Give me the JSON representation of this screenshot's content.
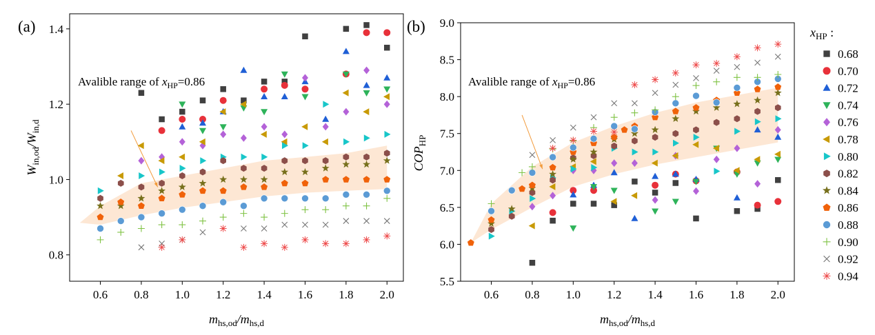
{
  "panels": [
    {
      "letter": "(a)",
      "ylabel": {
        "main": "W",
        "sub1": "in,od",
        "mid": "/W",
        "sub2": "in,d"
      },
      "xlabel": {
        "main": "m",
        "sub1": "hs,od",
        "mid": "/m",
        "sub2": "hs,d"
      },
      "annotation": {
        "pre": "Avalible range of ",
        "var": "x",
        "sub": "HP",
        "post": "=0.86"
      },
      "band_label": "available-range-xHP-0.86"
    },
    {
      "letter": "(b)",
      "ylabel": {
        "main": "COP",
        "sub1": "HP",
        "mid": "",
        "sub2": ""
      },
      "xlabel": {
        "main": "m",
        "sub1": "hs,od",
        "mid": "/m",
        "sub2": "hs,d"
      },
      "annotation": {
        "pre": "Avalible range of ",
        "var": "x",
        "sub": "HP",
        "post": "=0.86"
      },
      "band_label": "available-range-xHP-0.86"
    }
  ],
  "legend": {
    "title_var": "x",
    "title_sub": "HP",
    "title_post": " :",
    "entries": [
      {
        "label": "0.68",
        "color": "#404040",
        "marker": "square"
      },
      {
        "label": "0.70",
        "color": "#e8313a",
        "marker": "circle"
      },
      {
        "label": "0.72",
        "color": "#1f5fd6",
        "marker": "triangle-up"
      },
      {
        "label": "0.74",
        "color": "#2eb35a",
        "marker": "triangle-down"
      },
      {
        "label": "0.76",
        "color": "#b462d8",
        "marker": "diamond"
      },
      {
        "label": "0.78",
        "color": "#c89a06",
        "marker": "triangle-left"
      },
      {
        "label": "0.80",
        "color": "#18c6c9",
        "marker": "triangle-right"
      },
      {
        "label": "0.82",
        "color": "#8c4f4a",
        "marker": "hexagon"
      },
      {
        "label": "0.84",
        "color": "#77701c",
        "marker": "star"
      },
      {
        "label": "0.86",
        "color": "#f0620a",
        "marker": "pentagon"
      },
      {
        "label": "0.88",
        "color": "#5b9bd5",
        "marker": "sphere"
      },
      {
        "label": "0.90",
        "color": "#7fc243",
        "marker": "plus"
      },
      {
        "label": "0.92",
        "color": "#777777",
        "marker": "cross"
      },
      {
        "label": "0.94",
        "color": "#ee4a4a",
        "marker": "asterisk"
      }
    ]
  },
  "chart_data": [
    {
      "type": "scatter",
      "title": "",
      "xlabel": "m_hs,od/m_hs,d",
      "ylabel": "W_in,od/W_in,d",
      "xlim": [
        0.45,
        2.08
      ],
      "ylim": [
        0.73,
        1.44
      ],
      "xticks": [
        0.6,
        0.8,
        1.0,
        1.2,
        1.4,
        1.6,
        1.8,
        2.0
      ],
      "xtick_labels": [
        "0.6",
        "0.8",
        "1.0",
        "1.2",
        "1.4",
        "1.6",
        "1.8",
        "2.0"
      ],
      "yticks": [
        0.8,
        1.0,
        1.2,
        1.4
      ],
      "ytick_labels": [
        "0.8",
        "1.0",
        "1.2",
        "1.4"
      ],
      "x": [
        0.6,
        0.7,
        0.8,
        0.9,
        1.0,
        1.1,
        1.2,
        1.3,
        1.4,
        1.5,
        1.6,
        1.7,
        1.8,
        1.9,
        2.0
      ],
      "series": [
        {
          "name": "0.68",
          "values": [
            null,
            null,
            1.23,
            1.16,
            1.18,
            1.21,
            1.24,
            1.21,
            1.26,
            1.26,
            1.38,
            null,
            1.4,
            1.41,
            1.35
          ]
        },
        {
          "name": "0.70",
          "values": [
            null,
            null,
            null,
            1.13,
            1.16,
            1.16,
            1.21,
            null,
            1.24,
            1.25,
            1.24,
            null,
            1.28,
            1.39,
            1.39
          ]
        },
        {
          "name": "0.72",
          "values": [
            null,
            null,
            null,
            null,
            1.14,
            1.15,
            1.18,
            1.29,
            1.22,
            1.22,
            1.26,
            1.16,
            1.34,
            1.25,
            1.27
          ]
        },
        {
          "name": "0.74",
          "values": [
            null,
            null,
            null,
            null,
            1.2,
            1.13,
            1.14,
            1.19,
            1.18,
            1.28,
            1.22,
            null,
            1.28,
            1.23,
            1.24
          ]
        },
        {
          "name": "0.76",
          "values": [
            null,
            null,
            1.05,
            1.06,
            1.1,
            1.09,
            1.12,
            1.11,
            1.14,
            1.12,
            1.27,
            1.14,
            1.18,
            1.29,
            1.2
          ]
        },
        {
          "name": "0.78",
          "values": [
            null,
            1.01,
            1.09,
            1.05,
            1.06,
            1.1,
            1.18,
            1.2,
            1.12,
            1.1,
            1.14,
            1.1,
            1.23,
            1.18,
            1.22
          ]
        },
        {
          "name": "0.80",
          "values": [
            0.97,
            null,
            1.01,
            1.02,
            1.03,
            1.05,
            1.06,
            1.06,
            1.06,
            1.09,
            1.09,
            1.2,
            1.1,
            1.11,
            1.12
          ]
        },
        {
          "name": "0.82",
          "values": [
            0.95,
            0.99,
            0.98,
            0.99,
            1.01,
            1.02,
            1.05,
            1.03,
            1.03,
            1.05,
            1.05,
            1.05,
            1.06,
            1.06,
            1.07
          ]
        },
        {
          "name": "0.84",
          "values": [
            0.93,
            0.93,
            0.95,
            0.97,
            0.98,
            0.99,
            1.0,
            1.0,
            1.0,
            1.02,
            1.02,
            1.03,
            1.04,
            1.04,
            1.05
          ]
        },
        {
          "name": "0.86",
          "values": [
            0.9,
            0.94,
            0.93,
            0.95,
            0.96,
            0.97,
            0.97,
            0.98,
            0.98,
            0.99,
            0.99,
            1.0,
            1.0,
            1.0,
            1.0
          ]
        },
        {
          "name": "0.88",
          "values": [
            0.87,
            0.89,
            0.9,
            0.91,
            0.92,
            0.93,
            0.94,
            0.93,
            0.95,
            0.95,
            0.95,
            0.95,
            0.96,
            0.96,
            0.97
          ]
        },
        {
          "name": "0.90",
          "values": [
            0.84,
            0.86,
            0.87,
            0.88,
            0.88,
            0.89,
            0.9,
            0.91,
            0.9,
            0.91,
            0.92,
            0.92,
            0.93,
            0.93,
            0.95
          ]
        },
        {
          "name": "0.92",
          "values": [
            null,
            null,
            0.82,
            0.83,
            0.84,
            0.86,
            null,
            0.87,
            0.87,
            0.88,
            0.88,
            0.88,
            0.89,
            0.89,
            0.89
          ]
        },
        {
          "name": "0.94",
          "values": [
            null,
            null,
            null,
            0.82,
            0.84,
            null,
            0.87,
            0.82,
            0.83,
            0.82,
            0.84,
            0.83,
            0.83,
            0.84,
            0.85
          ]
        }
      ],
      "band_xHP_0.86": {
        "x": [
          0.5,
          0.6,
          0.8,
          1.0,
          1.2,
          1.4,
          1.6,
          1.8,
          2.0
        ],
        "lower": [
          0.885,
          0.88,
          0.905,
          0.925,
          0.94,
          0.955,
          0.965,
          0.97,
          0.975
        ],
        "upper": [
          0.885,
          0.93,
          0.99,
          1.01,
          1.03,
          1.05,
          1.06,
          1.07,
          1.09
        ]
      },
      "annotation_arrow": {
        "from": [
          0.75,
          1.13
        ],
        "to": [
          0.88,
          0.98
        ]
      },
      "grid": false
    },
    {
      "type": "scatter",
      "title": "",
      "xlabel": "m_hs,od/m_hs,d",
      "ylabel": "COP_HP",
      "xlim": [
        0.45,
        2.08
      ],
      "ylim": [
        5.5,
        9.0
      ],
      "xticks": [
        0.6,
        0.8,
        1.0,
        1.2,
        1.4,
        1.6,
        1.8,
        2.0
      ],
      "xtick_labels": [
        "0.6",
        "0.8",
        "1.0",
        "1.2",
        "1.4",
        "1.6",
        "1.8",
        "2.0"
      ],
      "yticks": [
        5.5,
        6.0,
        6.5,
        7.0,
        7.5,
        8.0,
        8.5,
        9.0
      ],
      "ytick_labels": [
        "5.5",
        "6.0",
        "6.5",
        "7.0",
        "7.5",
        "8.0",
        "8.5",
        "9.0"
      ],
      "x": [
        0.5,
        0.6,
        0.7,
        0.75,
        0.8,
        0.9,
        1.0,
        1.1,
        1.2,
        1.25,
        1.3,
        1.4,
        1.5,
        1.6,
        1.7,
        1.8,
        1.9,
        2.0
      ],
      "series": [
        {
          "name": "0.68",
          "values": [
            null,
            null,
            null,
            null,
            5.75,
            6.32,
            6.55,
            6.55,
            6.53,
            null,
            6.85,
            6.7,
            6.83,
            6.35,
            null,
            6.45,
            6.48,
            6.87
          ]
        },
        {
          "name": "0.70",
          "values": [
            null,
            null,
            null,
            null,
            null,
            6.43,
            6.73,
            6.73,
            null,
            null,
            null,
            6.8,
            6.95,
            6.86,
            null,
            6.98,
            6.53,
            6.58
          ]
        },
        {
          "name": "0.72",
          "values": [
            null,
            null,
            null,
            null,
            null,
            null,
            6.67,
            6.8,
            6.97,
            null,
            6.35,
            6.92,
            6.95,
            6.88,
            null,
            6.63,
            7.55,
            7.45
          ]
        },
        {
          "name": "0.74",
          "values": [
            null,
            null,
            null,
            null,
            null,
            null,
            6.22,
            6.78,
            6.73,
            null,
            null,
            6.45,
            6.58,
            6.85,
            7.3,
            6.95,
            7.1,
            7.15
          ]
        },
        {
          "name": "0.76",
          "values": [
            null,
            null,
            null,
            null,
            6.51,
            6.66,
            7.0,
            7.0,
            7.1,
            null,
            7.1,
            6.6,
            7.2,
            6.72,
            7.15,
            7.3,
            6.82,
            7.55
          ]
        },
        {
          "name": "0.78",
          "values": [
            null,
            null,
            null,
            null,
            6.25,
            6.78,
            7.05,
            7.12,
            6.58,
            null,
            6.66,
            7.1,
            7.2,
            7.35,
            7.3,
            7.0,
            7.15,
            7.22
          ]
        },
        {
          "name": "0.80",
          "values": [
            null,
            6.11,
            6.45,
            null,
            6.62,
            6.9,
            7.02,
            7.04,
            7.3,
            null,
            7.25,
            7.25,
            7.37,
            7.45,
            6.99,
            7.53,
            7.66,
            7.7
          ]
        },
        {
          "name": "0.82",
          "values": [
            null,
            6.2,
            6.38,
            null,
            6.7,
            6.87,
            7.17,
            7.2,
            7.33,
            null,
            7.4,
            7.45,
            7.5,
            7.55,
            7.65,
            7.7,
            7.8,
            7.85
          ]
        },
        {
          "name": "0.84",
          "values": [
            null,
            6.28,
            6.48,
            null,
            6.76,
            6.95,
            7.15,
            7.25,
            7.42,
            null,
            7.5,
            7.55,
            7.7,
            7.8,
            7.85,
            7.9,
            7.95,
            8.05
          ]
        },
        {
          "name": "0.86",
          "values": [
            6.02,
            6.33,
            null,
            6.75,
            6.8,
            7.04,
            7.25,
            7.37,
            7.45,
            7.55,
            7.6,
            7.72,
            7.8,
            7.85,
            7.95,
            8.05,
            8.1,
            8.13
          ]
        },
        {
          "name": "0.88",
          "values": [
            null,
            6.45,
            6.73,
            null,
            6.97,
            7.18,
            7.31,
            7.43,
            7.6,
            null,
            7.56,
            7.79,
            7.91,
            8.01,
            7.92,
            8.12,
            8.2,
            8.24
          ]
        },
        {
          "name": "0.90",
          "values": [
            null,
            6.55,
            null,
            6.97,
            7.05,
            7.29,
            7.4,
            7.58,
            7.72,
            null,
            7.78,
            7.82,
            8.0,
            8.15,
            8.2,
            8.26,
            8.26,
            8.3
          ]
        },
        {
          "name": "0.92",
          "values": [
            null,
            null,
            null,
            null,
            7.21,
            7.41,
            7.58,
            7.72,
            7.91,
            null,
            7.91,
            8.05,
            8.16,
            8.25,
            8.35,
            8.4,
            8.46,
            8.54
          ]
        },
        {
          "name": "0.94",
          "values": [
            null,
            null,
            null,
            null,
            null,
            7.3,
            7.41,
            7.53,
            7.52,
            null,
            8.16,
            8.23,
            8.32,
            8.43,
            8.45,
            8.54,
            8.66,
            8.71
          ]
        }
      ],
      "band_xHP_0.86": {
        "x": [
          0.5,
          0.6,
          0.8,
          1.0,
          1.2,
          1.4,
          1.6,
          1.8,
          2.0
        ],
        "lower": [
          6.02,
          6.2,
          6.5,
          6.78,
          6.95,
          7.08,
          7.18,
          7.28,
          7.38
        ],
        "upper": [
          6.02,
          6.55,
          7.05,
          7.38,
          7.6,
          7.78,
          7.92,
          8.02,
          8.12
        ]
      },
      "annotation_arrow": {
        "from": [
          0.75,
          7.75
        ],
        "to": [
          0.85,
          7.02
        ]
      },
      "grid": false
    }
  ]
}
